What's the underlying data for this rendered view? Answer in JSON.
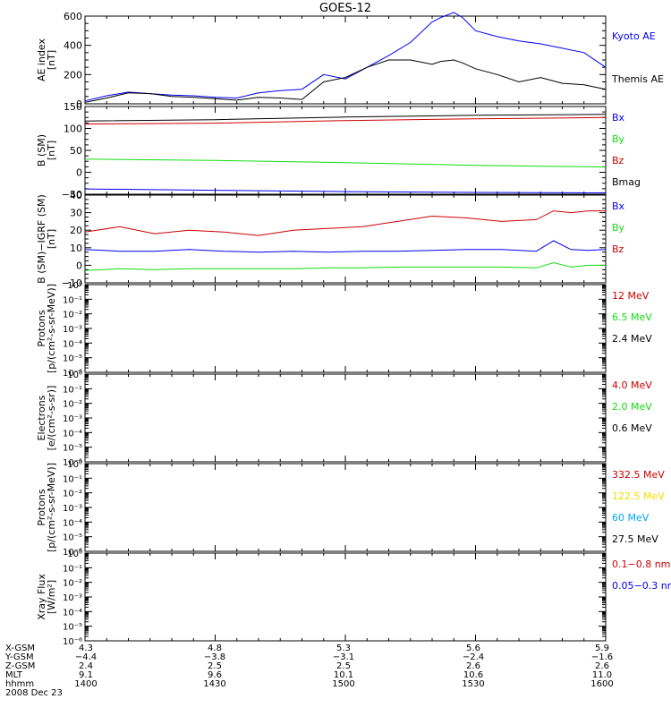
{
  "title": "GOES-12",
  "colors": {
    "black": "#000000",
    "red": "#cc0000",
    "green": "#11dd11",
    "blue": "#0000ee",
    "yellow": "#f0e000",
    "cyan": "#00aaee"
  },
  "chart_data": [
    {
      "type": "line",
      "panel": "ae",
      "ylabel": [
        "AE index",
        "[nT]"
      ],
      "ylim": [
        0,
        600
      ],
      "yticks": [
        0,
        200,
        400,
        600
      ],
      "ytick_labels": [
        "0",
        "200",
        "400",
        "600"
      ],
      "log": false,
      "x": [
        1400,
        1405,
        1410,
        1415,
        1420,
        1425,
        1430,
        1435,
        1440,
        1445,
        1450,
        1455,
        1500,
        1505,
        1510,
        1515,
        1520,
        1522,
        1525,
        1527,
        1530,
        1535,
        1540,
        1545,
        1550,
        1555,
        1600
      ],
      "series": [
        {
          "name": "Kyoto AE",
          "color": "#0000ee",
          "values": [
            20,
            55,
            80,
            70,
            60,
            55,
            45,
            40,
            75,
            90,
            100,
            200,
            170,
            250,
            330,
            420,
            560,
            590,
            625,
            590,
            500,
            460,
            430,
            410,
            380,
            350,
            250
          ]
        },
        {
          "name": "Themis AE",
          "color": "#000000",
          "values": [
            10,
            40,
            75,
            70,
            50,
            45,
            35,
            25,
            45,
            40,
            30,
            150,
            180,
            250,
            300,
            300,
            270,
            290,
            300,
            280,
            240,
            200,
            150,
            180,
            140,
            130,
            100
          ]
        }
      ]
    },
    {
      "type": "line",
      "panel": "b_sm",
      "ylabel": [
        "B (SM)",
        "[nT]"
      ],
      "ylim": [
        -50,
        150
      ],
      "yticks": [
        -50,
        0,
        50,
        100,
        150
      ],
      "ytick_labels": [
        "−50",
        "0",
        "50",
        "100",
        "150"
      ],
      "log": false,
      "x": [
        1400,
        1430,
        1500,
        1530,
        1600
      ],
      "series": [
        {
          "name": "Bx",
          "color": "#0000ee",
          "values": [
            -38,
            -41,
            -44,
            -46,
            -47
          ]
        },
        {
          "name": "By",
          "color": "#11dd11",
          "values": [
            30,
            27,
            22,
            16,
            12
          ]
        },
        {
          "name": "Bz",
          "color": "#cc0000",
          "values": [
            110,
            112,
            118,
            122,
            125
          ]
        },
        {
          "name": "Bmag",
          "color": "#000000",
          "values": [
            117,
            120,
            126,
            130,
            132
          ]
        }
      ]
    },
    {
      "type": "line",
      "panel": "b_sm_igrf",
      "ylabel": [
        "B (SM)−IGRF (SM)",
        "[nT]"
      ],
      "ylim": [
        -10,
        40
      ],
      "yticks": [
        -10,
        0,
        10,
        20,
        30,
        40
      ],
      "ytick_labels": [
        "−10",
        "0",
        "10",
        "20",
        "30",
        "40"
      ],
      "log": false,
      "x": [
        1400,
        1408,
        1416,
        1424,
        1432,
        1440,
        1448,
        1456,
        1504,
        1512,
        1520,
        1528,
        1536,
        1544,
        1548,
        1552,
        1556,
        1600
      ],
      "series": [
        {
          "name": "Bx",
          "color": "#0000ee",
          "values": [
            9,
            8,
            8,
            9,
            8,
            7.5,
            8,
            7.5,
            8,
            8,
            8.5,
            9,
            9,
            8,
            14,
            9,
            8.5,
            9
          ]
        },
        {
          "name": "By",
          "color": "#11dd11",
          "values": [
            -3,
            -2,
            -2.5,
            -2,
            -2,
            -2,
            -2,
            -1.5,
            -1.5,
            -1,
            -1,
            -1,
            -1,
            -1.5,
            1.5,
            -1,
            0,
            0
          ]
        },
        {
          "name": "Bz",
          "color": "#cc0000",
          "values": [
            19,
            22,
            18,
            20,
            19,
            17,
            20,
            21,
            22,
            25,
            28,
            27,
            25,
            26,
            31,
            30,
            31,
            31
          ]
        }
      ]
    },
    {
      "type": "line",
      "panel": "protons_low",
      "ylabel": [
        "Protons",
        "[p/(cm²-s-sr-MeV)]"
      ],
      "log": true,
      "ylim": [
        -6,
        0
      ],
      "ytick_labels": [
        "10⁰",
        "10⁻¹",
        "10⁻²",
        "10⁻³",
        "10⁻⁴",
        "10⁻⁵",
        "10⁻⁶"
      ],
      "series": [
        {
          "name": "12 MeV",
          "color": "#cc0000",
          "values": []
        },
        {
          "name": "6.5 MeV",
          "color": "#11dd11",
          "values": []
        },
        {
          "name": "2.4 MeV",
          "color": "#000000",
          "values": []
        }
      ]
    },
    {
      "type": "line",
      "panel": "electrons",
      "ylabel": [
        "Electrons",
        "[e/(cm²-s-sr)]"
      ],
      "log": true,
      "ylim": [
        -6,
        0
      ],
      "ytick_labels": [
        "10⁰",
        "10⁻¹",
        "10⁻²",
        "10⁻³",
        "10⁻⁴",
        "10⁻⁵",
        "10⁻⁶"
      ],
      "series": [
        {
          "name": "4.0 MeV",
          "color": "#cc0000",
          "values": []
        },
        {
          "name": "2.0 MeV",
          "color": "#11dd11",
          "values": []
        },
        {
          "name": "0.6 MeV",
          "color": "#000000",
          "values": []
        }
      ]
    },
    {
      "type": "line",
      "panel": "protons_high",
      "ylabel": [
        "Protons",
        "[p/(cm²-s-sr-MeV)]"
      ],
      "log": true,
      "ylim": [
        -6,
        0
      ],
      "ytick_labels": [
        "10⁰",
        "10⁻¹",
        "10⁻²",
        "10⁻³",
        "10⁻⁴",
        "10⁻⁵",
        "10⁻⁶"
      ],
      "series": [
        {
          "name": "332.5 MeV",
          "color": "#cc0000",
          "values": []
        },
        {
          "name": "122.5 MeV",
          "color": "#f0e000",
          "values": []
        },
        {
          "name": "60 MeV",
          "color": "#00aaee",
          "values": []
        },
        {
          "name": "27.5 MeV",
          "color": "#000000",
          "values": []
        }
      ]
    },
    {
      "type": "line",
      "panel": "xray",
      "ylabel": [
        "Xray Flux",
        "[W/m²]"
      ],
      "log": true,
      "ylim": [
        -6,
        0
      ],
      "ytick_labels": [
        "10⁰",
        "10⁻¹",
        "10⁻²",
        "10⁻³",
        "10⁻⁴",
        "10⁻⁵",
        "10⁻⁶"
      ],
      "series": [
        {
          "name": "0.1−0.8 nm",
          "color": "#cc0000",
          "values": []
        },
        {
          "name": "0.05−0.3 nm",
          "color": "#0000ee",
          "values": []
        }
      ]
    }
  ],
  "orbit_table": {
    "row_labels": [
      "X-GSM",
      "Y-GSM",
      "Z-GSM",
      "MLT",
      "hhmm"
    ],
    "columns": [
      [
        "4.3",
        "−4.4",
        "2.4",
        "9.1",
        "1400"
      ],
      [
        "4.8",
        "−3.8",
        "2.5",
        "9.6",
        "1430"
      ],
      [
        "5.3",
        "−3.1",
        "2.5",
        "10.1",
        "1500"
      ],
      [
        "5.6",
        "−2.4",
        "2.6",
        "10.6",
        "1530"
      ],
      [
        "5.9",
        "−1.6",
        "2.6",
        "11.0",
        "1600"
      ]
    ],
    "date": "2008 Dec 23"
  }
}
